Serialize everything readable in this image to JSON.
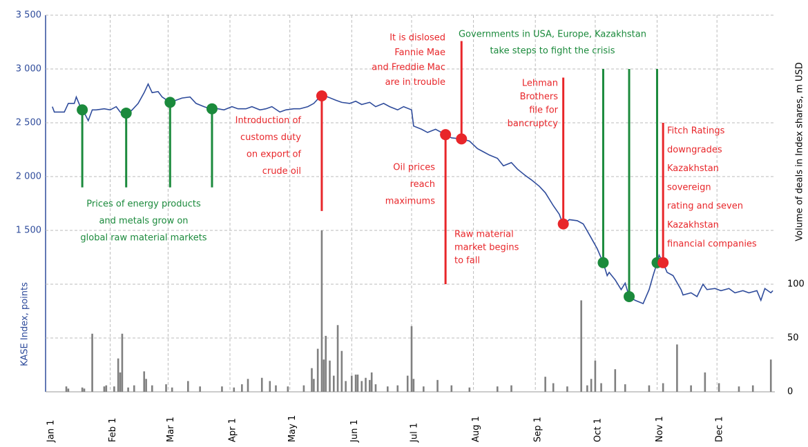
{
  "chart_data": {
    "type": "line",
    "y_label": "KASE Index, points",
    "y2_label": "Volume of deals in Index shares, m USD",
    "xlim": [
      0,
      364
    ],
    "xticks": [
      {
        "value": 0,
        "label": "Jan 1"
      },
      {
        "value": 31,
        "label": "Feb 1"
      },
      {
        "value": 60,
        "label": "Mar 1"
      },
      {
        "value": 91,
        "label": "Apr 1"
      },
      {
        "value": 121,
        "label": "May 1"
      },
      {
        "value": 152,
        "label": "Jun 1"
      },
      {
        "value": 182,
        "label": "Jul 1"
      },
      {
        "value": 213,
        "label": "Aug 1"
      },
      {
        "value": 244,
        "label": "Sep 1"
      },
      {
        "value": 274,
        "label": "Oct 1"
      },
      {
        "value": 305,
        "label": "Nov 1"
      },
      {
        "value": 335,
        "label": "Dec 1"
      }
    ],
    "ylim": [
      0,
      3500
    ],
    "yticks": [
      {
        "value": 1500,
        "label": "1 500"
      },
      {
        "value": 2000,
        "label": "2 000"
      },
      {
        "value": 2500,
        "label": "2 500"
      },
      {
        "value": 3000,
        "label": "3 000"
      },
      {
        "value": 3500,
        "label": "3 500"
      }
    ],
    "y2lim": [
      0,
      350
    ],
    "y2ticks": [
      0,
      50,
      100
    ],
    "grid": true,
    "series": [
      {
        "name": "KASE Index",
        "color": "#2e4b9b",
        "x": [
          2,
          3,
          8,
          10,
          13,
          14,
          16,
          17,
          20,
          22,
          24,
          28,
          31,
          34,
          36,
          39,
          42,
          45,
          48,
          50,
          52,
          55,
          57,
          61,
          64,
          67,
          71,
          74,
          78,
          81,
          85,
          88,
          92,
          95,
          99,
          102,
          106,
          109,
          112,
          116,
          119,
          123,
          126,
          130,
          133,
          137,
          140,
          144,
          147,
          151,
          154,
          157,
          161,
          164,
          168,
          171,
          175,
          178,
          182,
          183,
          187,
          190,
          194,
          199,
          202,
          207,
          211,
          215,
          218,
          221,
          225,
          228,
          232,
          235,
          239,
          242,
          246,
          249,
          253,
          256,
          258,
          261,
          265,
          268,
          272,
          275,
          278,
          280,
          281,
          284,
          287,
          289,
          291,
          294,
          298,
          301,
          303,
          305,
          306,
          308,
          310,
          313,
          317,
          318,
          322,
          325,
          328,
          330,
          334,
          337,
          341,
          344,
          348,
          351,
          355,
          357,
          359,
          362,
          363
        ],
        "values": [
          2650,
          2600,
          2600,
          2680,
          2680,
          2740,
          2650,
          2630,
          2520,
          2620,
          2620,
          2630,
          2620,
          2650,
          2600,
          2570,
          2620,
          2680,
          2780,
          2860,
          2780,
          2790,
          2740,
          2690,
          2710,
          2730,
          2740,
          2680,
          2650,
          2630,
          2630,
          2620,
          2650,
          2630,
          2630,
          2650,
          2620,
          2630,
          2650,
          2600,
          2620,
          2630,
          2630,
          2650,
          2680,
          2760,
          2740,
          2710,
          2690,
          2680,
          2700,
          2670,
          2690,
          2650,
          2680,
          2650,
          2620,
          2650,
          2620,
          2470,
          2440,
          2410,
          2440,
          2390,
          2360,
          2350,
          2330,
          2260,
          2230,
          2200,
          2170,
          2100,
          2130,
          2070,
          2010,
          1970,
          1910,
          1850,
          1730,
          1650,
          1550,
          1600,
          1590,
          1560,
          1430,
          1330,
          1200,
          1080,
          1110,
          1040,
          950,
          1010,
          885,
          850,
          820,
          950,
          1080,
          1200,
          1270,
          1200,
          1110,
          1080,
          950,
          900,
          920,
          885,
          1000,
          950,
          960,
          940,
          960,
          920,
          940,
          920,
          940,
          850,
          960,
          920,
          940
        ]
      },
      {
        "name": "Volume",
        "type": "bar",
        "axis": "y2",
        "color": "#808080",
        "x": [
          9,
          10,
          17,
          18,
          22,
          28,
          29,
          33,
          35,
          36,
          37,
          40,
          43,
          48,
          49,
          52,
          59,
          62,
          70,
          76,
          87,
          93,
          97,
          100,
          107,
          111,
          114,
          120,
          128,
          132,
          133,
          135,
          137,
          138,
          139,
          141,
          143,
          145,
          147,
          149,
          152,
          154,
          155,
          157,
          159,
          161,
          162,
          164,
          170,
          175,
          180,
          182,
          183,
          188,
          195,
          202,
          211,
          225,
          232,
          249,
          253,
          260,
          267,
          270,
          272,
          274,
          277,
          284,
          289,
          301,
          308,
          315,
          322,
          329,
          336,
          346,
          353,
          362
        ],
        "values": [
          5,
          3,
          4,
          3,
          54,
          5,
          6,
          5,
          31,
          18,
          54,
          4,
          6,
          19,
          12,
          6,
          7,
          4,
          10,
          5,
          5,
          4,
          7,
          12,
          13,
          10,
          6,
          5,
          6,
          22,
          12,
          40,
          150,
          30,
          52,
          29,
          15,
          62,
          38,
          10,
          15,
          16,
          16,
          10,
          13,
          11,
          18,
          7,
          5,
          6,
          15,
          61,
          12,
          5,
          11,
          6,
          4,
          5,
          6,
          14,
          8,
          5,
          85,
          6,
          12,
          29,
          8,
          21,
          7,
          6,
          8,
          44,
          6,
          18,
          8,
          5,
          6,
          30
        ]
      }
    ],
    "events": [
      {
        "x": 17,
        "y": 2620,
        "stem_end": 1900,
        "color": "#1b8a3c"
      },
      {
        "x": 39,
        "y": 2590,
        "stem_end": 1900,
        "color": "#1b8a3c"
      },
      {
        "x": 61,
        "y": 2690,
        "stem_end": 1900,
        "color": "#1b8a3c"
      },
      {
        "x": 82,
        "y": 2630,
        "stem_end": 1900,
        "color": "#1b8a3c"
      },
      {
        "x": 137,
        "y": 2750,
        "stem_end": 1680,
        "color": "#e8262a"
      },
      {
        "x": 199,
        "y": 2390,
        "stem_end": 1000,
        "color": "#e8262a"
      },
      {
        "x": 207,
        "y": 2350,
        "stem_end": 3260,
        "color": "#e8262a"
      },
      {
        "x": 258,
        "y": 1560,
        "stem_end": 2920,
        "color": "#e8262a"
      },
      {
        "x": 278,
        "y": 1200,
        "stem_end": 3000,
        "color": "#1b8a3c"
      },
      {
        "x": 291,
        "y": 885,
        "stem_end": 3000,
        "color": "#1b8a3c"
      },
      {
        "x": 305,
        "y": 1200,
        "stem_end": 3000,
        "color": "#1b8a3c"
      },
      {
        "x": 308,
        "y": 1200,
        "stem_end": 2500,
        "color": "#e8262a"
      }
    ],
    "annotations": [
      {
        "color": "#1b8a3c",
        "lines": [
          "Prices of energy products",
          "and metals grow on",
          "global raw material markets"
        ]
      },
      {
        "color": "#e8262a",
        "lines": [
          "Introduction of",
          "customs duty",
          "on export of",
          "crude oil"
        ]
      },
      {
        "color": "#e8262a",
        "lines": [
          "It is dislosed",
          "Fannie Mae",
          "and Freddie Mac",
          "are in trouble"
        ]
      },
      {
        "color": "#e8262a",
        "lines": [
          "Oil prices",
          "reach",
          "maximums"
        ]
      },
      {
        "color": "#e8262a",
        "lines": [
          "Raw material",
          "market begins",
          "to fall"
        ]
      },
      {
        "color": "#1b8a3c",
        "lines": [
          "Governments in USA, Europe, Kazakhstan",
          "take steps to fight the crisis"
        ]
      },
      {
        "color": "#e8262a",
        "lines": [
          "Lehman",
          "Brothers",
          "file for",
          "bancruptcy"
        ]
      },
      {
        "color": "#e8262a",
        "lines": [
          "Fitch Ratings",
          "downgrades",
          "Kazakhstan",
          "sovereign",
          "rating and seven",
          "Kazakhstan",
          "financial companies"
        ]
      }
    ]
  }
}
